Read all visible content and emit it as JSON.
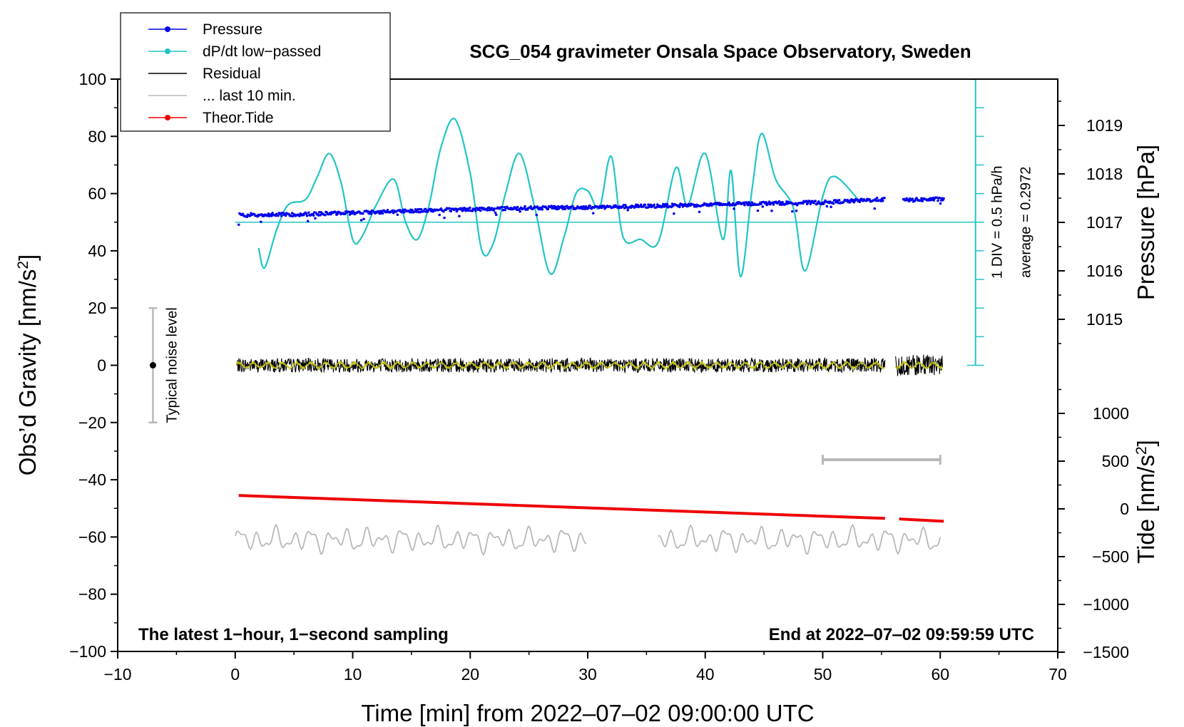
{
  "chart_data": {
    "type": "line",
    "title": "SCG_054 gravimeter Onsala Space Observatory, Sweden",
    "xlabel": "Time [min] from 2022‒07‒02 09:00:00 UTC",
    "ylabel_left": "Obs’d Gravity [nm/s",
    "ylabel_left_sup": "2",
    "ylabel_left_close": "]",
    "ylabel_right_pressure": "Pressure [hPa]",
    "ylabel_right_tide": "Tide [nm/s",
    "ylabel_right_tide_sup": "2",
    "ylabel_right_tide_close": "]",
    "xlim": [
      -10,
      70
    ],
    "ylim": [
      -100,
      100
    ],
    "x_ticks": [
      -10,
      0,
      10,
      20,
      30,
      40,
      50,
      60,
      70
    ],
    "x_tick_labels": [
      "−10",
      "0",
      "10",
      "20",
      "30",
      "40",
      "50",
      "60",
      "70"
    ],
    "y_ticks": [
      100,
      80,
      60,
      40,
      20,
      0,
      -20,
      -40,
      -60,
      -80,
      -100
    ],
    "y_tick_labels": [
      "100",
      "80",
      "60",
      "40",
      "20",
      "0",
      "−20",
      "−40",
      "−60",
      "−80",
      "−100"
    ],
    "pressure_axis": {
      "ticks": [
        1019,
        1018,
        1017,
        1016,
        1015
      ],
      "labels": [
        "1019",
        "1018",
        "1017",
        "1016",
        "1015"
      ]
    },
    "tide_axis": {
      "ticks": [
        1000,
        500,
        0,
        -500,
        -1000,
        -1500
      ],
      "labels": [
        "1000",
        "500",
        "0",
        "−500",
        "−1000",
        "−1500"
      ]
    },
    "legend": [
      {
        "label": "Pressure",
        "color": "#0000ee",
        "marker": true
      },
      {
        "label": "dP/dt low−passed",
        "color": "#22c4c4",
        "marker": true
      },
      {
        "label": "Residual",
        "color": "#000000",
        "marker": false
      },
      {
        "label": "... last 10 min.",
        "color": "#b8b8b8",
        "marker": false
      },
      {
        "label": "Theor.Tide",
        "color": "#ee0000",
        "marker": true
      }
    ],
    "series": [
      {
        "name": "Pressure",
        "color": "#0000ee",
        "x": [
          0.3,
          5,
          10,
          15,
          20,
          25,
          30,
          35,
          40,
          45,
          50,
          55.3,
          56.8,
          60.3
        ],
        "values": [
          52.5,
          52.7,
          53.3,
          54.0,
          54.5,
          55.0,
          55.2,
          55.6,
          56.1,
          56.6,
          56.9,
          58.0,
          57.7,
          58.1
        ],
        "gap": [
          55.3,
          56.8
        ]
      },
      {
        "name": "dP/dt low−passed",
        "color": "#22c4c4",
        "x": [
          2.0,
          2.5,
          3.5,
          4.5,
          6.0,
          7.0,
          8.0,
          9.0,
          10.0,
          10.8,
          12.0,
          13.5,
          14.5,
          15.5,
          16.5,
          17.5,
          18.7,
          20.0,
          21.0,
          22.0,
          23.0,
          24.2,
          25.5,
          26.8,
          28.0,
          29.0,
          30.0,
          31.0,
          32.0,
          33.0,
          34.5,
          36.0,
          37.5,
          38.5,
          40.0,
          41.5,
          42.2,
          43.0,
          44.0,
          44.8,
          46.0,
          47.5,
          48.5,
          50.0,
          51.0,
          53.0
        ],
        "values": [
          41,
          34,
          47,
          56,
          58,
          66,
          74,
          64,
          44,
          45,
          56,
          65,
          50,
          44,
          56,
          76,
          86,
          67,
          40,
          43,
          60,
          74,
          55,
          32,
          45,
          60,
          61,
          55,
          73,
          45,
          44,
          43,
          69,
          56,
          74,
          44,
          68,
          31,
          62,
          81,
          65,
          55,
          33,
          59,
          66,
          58
        ]
      },
      {
        "name": "dP/dt average line",
        "color": "#22c4c4",
        "x": [
          0,
          63
        ],
        "values": [
          50,
          50
        ]
      },
      {
        "name": "Residual",
        "color": "#000000",
        "x_start": 0.1,
        "x_end": 60.2,
        "gap": [
          55.3,
          56.2
        ],
        "values": [
          0.0
        ],
        "amplitude": 2.5
      },
      {
        "name": "... last 10 min.",
        "color": "#b8b8b8",
        "segments": [
          [
            0,
            30
          ],
          [
            36,
            60
          ]
        ],
        "values": [
          -61.0
        ],
        "amplitude": 2.5
      },
      {
        "name": "Theor.Tide",
        "color": "#ee0000",
        "x": [
          0.3,
          55.3,
          56.5,
          60.3
        ],
        "values": [
          -45.5,
          -53.5,
          -53.7,
          -54.5
        ],
        "gap": [
          55.3,
          56.5
        ]
      }
    ],
    "noise_bar": {
      "label": "Typical noise level",
      "x": -7,
      "center": 0,
      "low": -20,
      "high": 20
    },
    "scale_bar": {
      "x_start": 50,
      "x_end": 60,
      "y": -33
    },
    "pressure_scale": {
      "label_div": "1 DIV = 0.5 hPa/h",
      "label_avg": "average = 0.2972",
      "x": 63
    },
    "annotation_left": "The latest 1−hour, 1−second sampling",
    "annotation_right": "End at 2022‒07‒02 09:59:59 UTC",
    "legend_location": "top-left",
    "grid": false
  }
}
